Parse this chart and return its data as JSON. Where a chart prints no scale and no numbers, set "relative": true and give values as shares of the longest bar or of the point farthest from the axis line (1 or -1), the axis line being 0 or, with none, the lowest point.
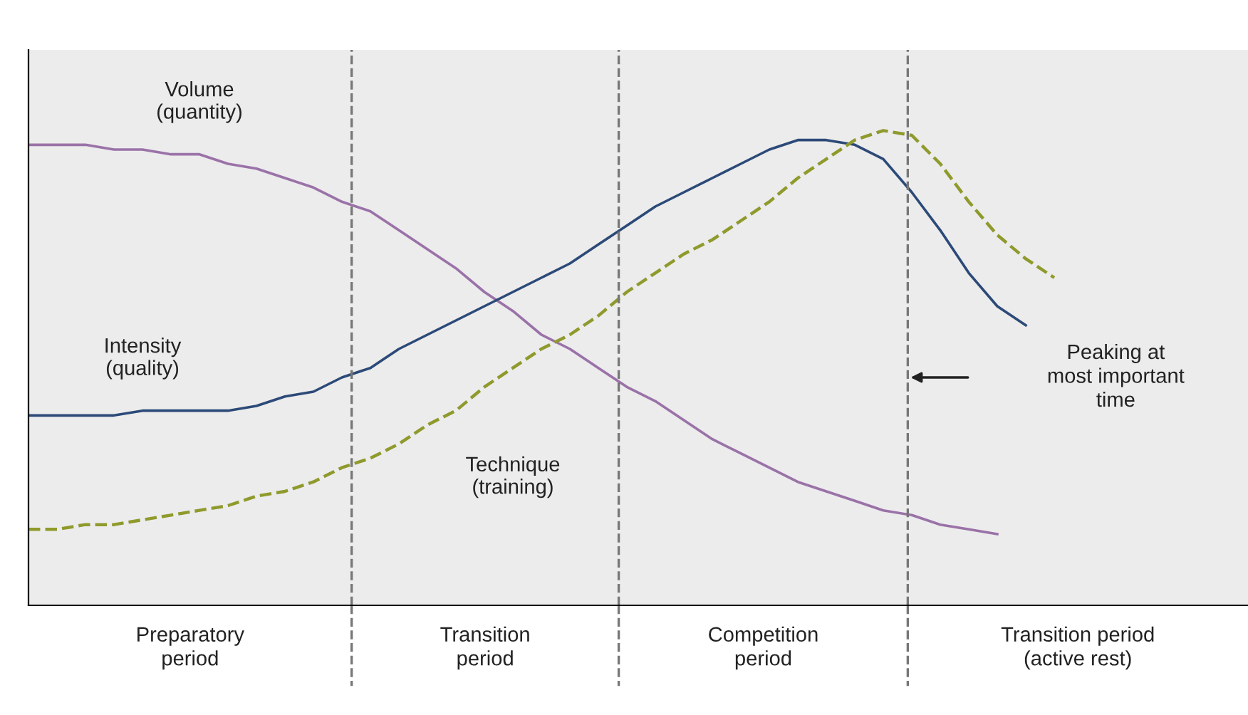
{
  "chart_data": {
    "type": "line",
    "relative": true,
    "categories": [
      null,
      null,
      null,
      null,
      null,
      null,
      null,
      null,
      null,
      null,
      null,
      null,
      null,
      null,
      null,
      null,
      null,
      null,
      null,
      null,
      null,
      null,
      null,
      null,
      null,
      null,
      null,
      null,
      null,
      null,
      null,
      null,
      null,
      null,
      null,
      null,
      null,
      null,
      null,
      null,
      null,
      null,
      null
    ],
    "series": [
      {
        "name": "Volume\n(quantity)",
        "color": "#9a72a8",
        "line_style": "solid",
        "values": [
          0.97,
          0.97,
          0.97,
          0.96,
          0.96,
          0.95,
          0.95,
          0.93,
          0.92,
          0.9,
          0.88,
          0.85,
          0.83,
          0.79,
          0.75,
          0.71,
          0.66,
          0.62,
          0.57,
          0.54,
          0.5,
          0.46,
          0.43,
          0.39,
          0.35,
          0.32,
          0.29,
          0.26,
          0.24,
          0.22,
          0.2,
          0.19,
          0.17,
          0.16,
          0.15,
          null,
          null,
          null,
          null,
          null,
          null,
          null,
          null
        ]
      },
      {
        "name": "Intensity\n(quality)",
        "color": "#2c4a78",
        "line_style": "solid",
        "values": [
          0.4,
          0.4,
          0.4,
          0.4,
          0.41,
          0.41,
          0.41,
          0.41,
          0.42,
          0.44,
          0.45,
          0.48,
          0.5,
          0.54,
          0.57,
          0.6,
          0.63,
          0.66,
          0.69,
          0.72,
          0.76,
          0.8,
          0.84,
          0.87,
          0.9,
          0.93,
          0.96,
          0.98,
          0.98,
          0.97,
          0.94,
          0.87,
          0.79,
          0.7,
          0.63,
          0.59,
          null,
          null,
          null,
          null,
          null,
          null,
          null
        ]
      },
      {
        "name": "Technique\n(training)",
        "color": "#8f9a2c",
        "line_style": "dashed",
        "values": [
          0.16,
          0.16,
          0.17,
          0.17,
          0.18,
          0.19,
          0.2,
          0.21,
          0.23,
          0.24,
          0.26,
          0.29,
          0.31,
          0.34,
          0.38,
          0.41,
          0.46,
          0.5,
          0.54,
          0.57,
          0.61,
          0.66,
          0.7,
          0.74,
          0.77,
          0.81,
          0.85,
          0.9,
          0.94,
          0.98,
          1.0,
          0.99,
          0.93,
          0.85,
          0.78,
          0.73,
          0.69,
          null,
          null,
          null,
          null,
          null,
          null
        ]
      }
    ],
    "annotations": [
      "Preparatory\nperiod",
      "Transition\nperiod",
      "Competition\nperiod",
      "Transition period\n(active rest)",
      "Peaking at\nmost important\ntime"
    ],
    "grid": false,
    "legend": false
  }
}
